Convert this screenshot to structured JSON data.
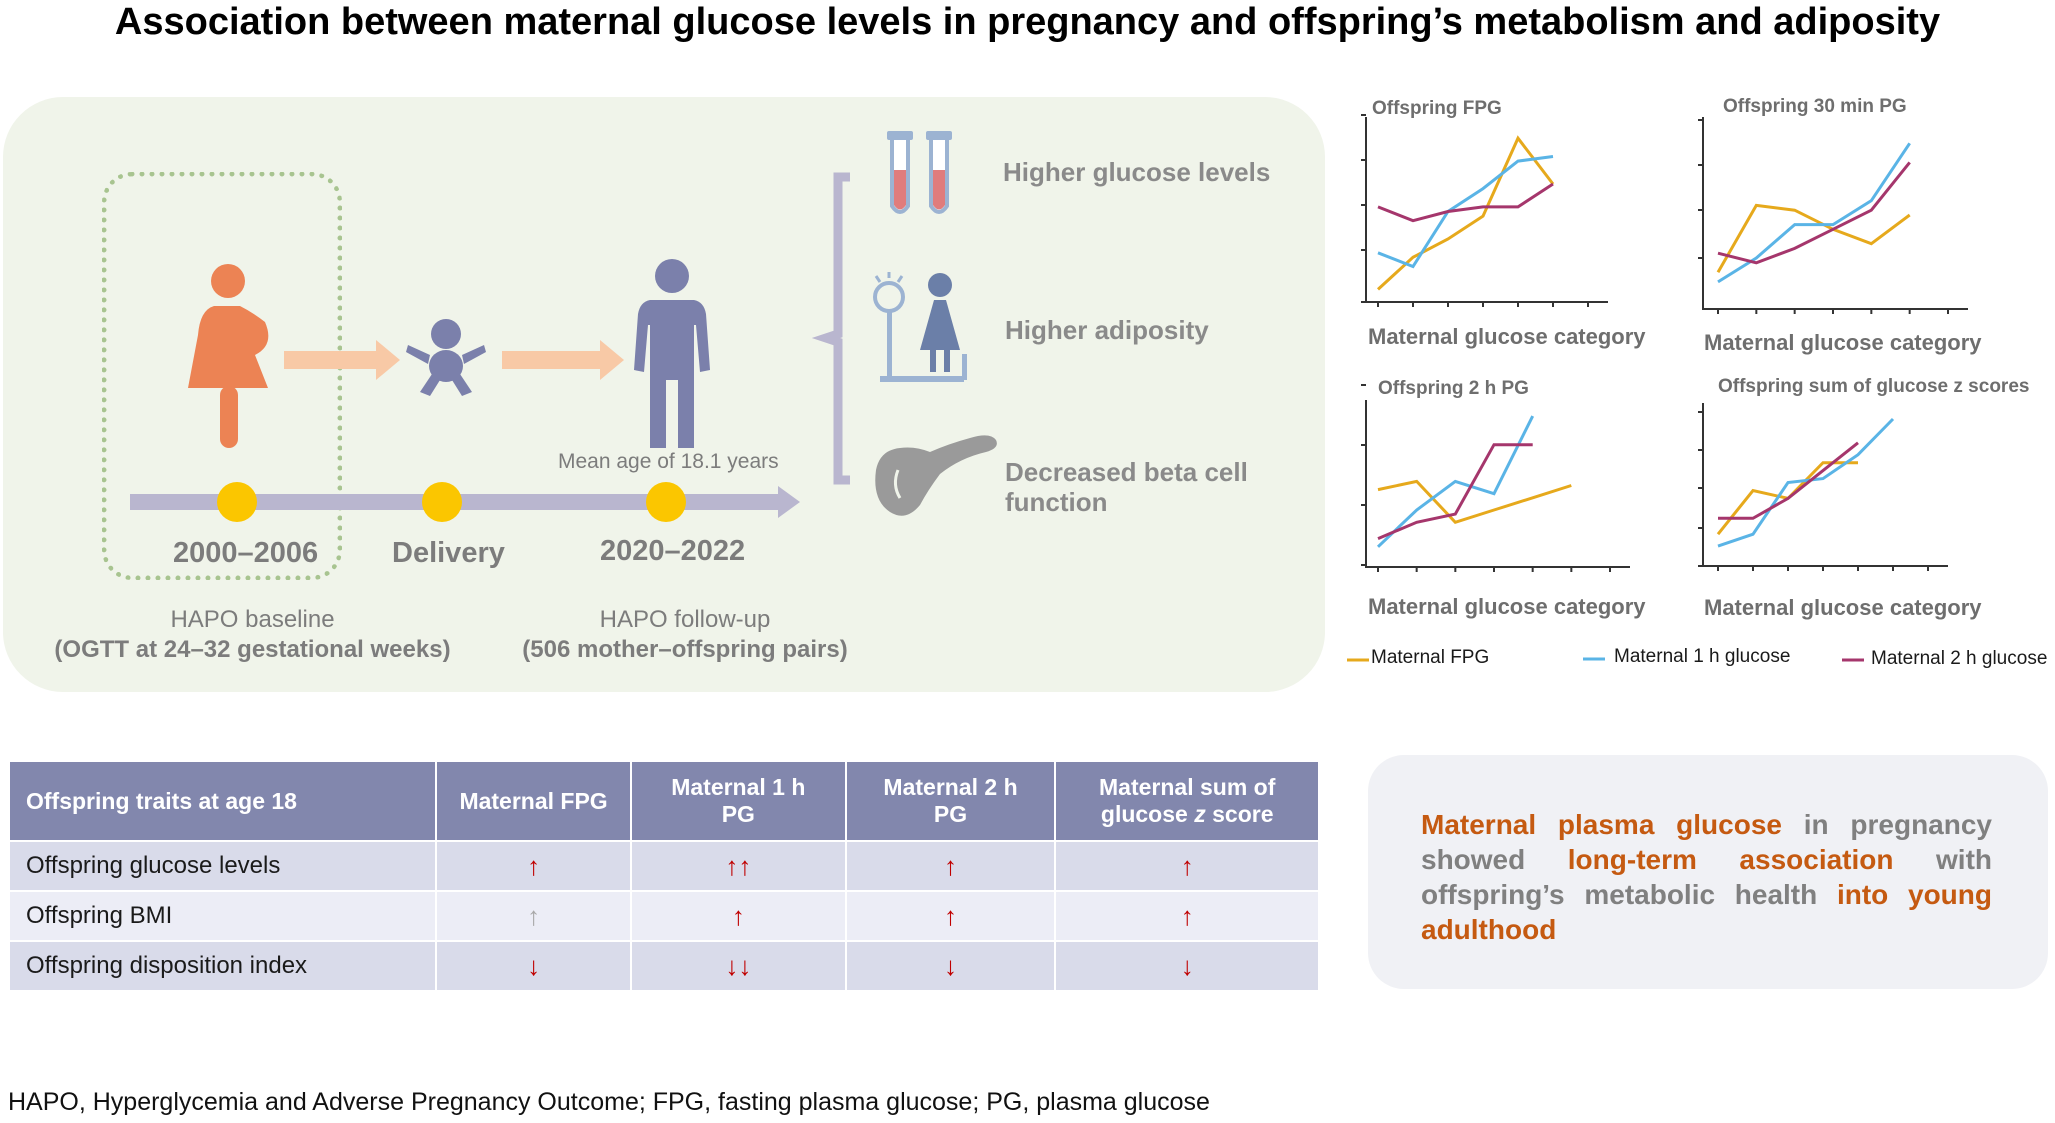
{
  "title": "Association between maternal glucose levels in pregnancy and offspring’s metabolism and adiposity",
  "timeline": {
    "events": [
      {
        "year": "2000–2006",
        "label": "HAPO baseline",
        "detail": "(OGTT at 24–32 gestational weeks)"
      },
      {
        "year": "Delivery"
      },
      {
        "year": "2020–2022",
        "label": "HAPO follow-up",
        "detail": "(506 mother–offspring pairs)",
        "note": "Mean age of 18.1 years"
      }
    ]
  },
  "outcomes": [
    "Higher glucose levels",
    "Higher adiposity",
    "Decreased beta cell function"
  ],
  "colors": {
    "maternal_fpg": "#e6a91c",
    "maternal_1h": "#5ab4e6",
    "maternal_2h": "#a5366c",
    "accent": "#c55a11",
    "table_header": "#8287ad",
    "arrow": "#c00000"
  },
  "chart_data": [
    {
      "type": "line",
      "title": "Offspring FPG",
      "xlabel": "Maternal glucose category",
      "ylabel": "",
      "x": [
        1,
        2,
        3,
        4,
        5,
        6,
        7
      ],
      "series": [
        {
          "name": "Maternal FPG",
          "values": [
            0.1,
            0.8,
            1.2,
            1.7,
            3.4,
            2.4,
            null
          ]
        },
        {
          "name": "Maternal 1 h glucose",
          "values": [
            0.9,
            0.6,
            1.8,
            2.3,
            2.9,
            3.0,
            null
          ]
        },
        {
          "name": "Maternal 2 h glucose",
          "values": [
            1.9,
            1.6,
            1.8,
            1.9,
            1.9,
            2.4,
            null
          ]
        }
      ]
    },
    {
      "type": "line",
      "title": "Offspring 30 min PG",
      "xlabel": "Maternal glucose category",
      "ylabel": "",
      "x": [
        1,
        2,
        3,
        4,
        5,
        6,
        7
      ],
      "series": [
        {
          "name": "Maternal FPG",
          "values": [
            0.6,
            2.0,
            1.9,
            1.5,
            1.2,
            1.8,
            null
          ]
        },
        {
          "name": "Maternal 1 h glucose",
          "values": [
            0.4,
            0.9,
            1.6,
            1.6,
            2.1,
            3.3,
            null
          ]
        },
        {
          "name": "Maternal 2 h glucose",
          "values": [
            1.0,
            0.8,
            1.1,
            1.5,
            1.9,
            2.9,
            null
          ]
        }
      ]
    },
    {
      "type": "line",
      "title": "Offspring 2 h PG",
      "xlabel": "Maternal glucose category",
      "ylabel": "",
      "x": [
        1,
        2,
        3,
        4,
        5,
        6,
        7
      ],
      "series": [
        {
          "name": "Maternal FPG",
          "values": [
            1.7,
            1.9,
            0.9,
            1.2,
            1.5,
            1.8,
            null
          ]
        },
        {
          "name": "Maternal 1 h glucose",
          "values": [
            0.3,
            1.2,
            1.9,
            1.6,
            3.5,
            null,
            null
          ]
        },
        {
          "name": "Maternal 2 h glucose",
          "values": [
            0.5,
            0.9,
            1.1,
            2.8,
            2.8,
            null,
            null
          ]
        }
      ]
    },
    {
      "type": "line",
      "title": "Offspring sum of glucose z scores",
      "xlabel": "Maternal glucose category",
      "ylabel": "",
      "x": [
        1,
        2,
        3,
        4,
        5,
        6,
        7
      ],
      "series": [
        {
          "name": "Maternal FPG",
          "values": [
            0.6,
            1.7,
            1.5,
            2.4,
            2.4,
            null,
            null
          ]
        },
        {
          "name": "Maternal 1 h glucose",
          "values": [
            0.3,
            0.6,
            1.9,
            2.0,
            2.6,
            3.5,
            null
          ]
        },
        {
          "name": "Maternal 2 h glucose",
          "values": [
            1.0,
            1.0,
            1.5,
            2.2,
            2.9,
            null,
            null
          ]
        }
      ]
    }
  ],
  "legend": [
    "Maternal FPG",
    "Maternal 1 h glucose",
    "Maternal 2 h glucose"
  ],
  "table": {
    "headers": [
      [
        "Offspring traits at age 18"
      ],
      [
        "Maternal FPG"
      ],
      [
        "Maternal 1 h",
        "PG"
      ],
      [
        "Maternal 2 h",
        "PG"
      ],
      [
        "Maternal  sum of",
        "glucose z score"
      ]
    ],
    "rows": [
      {
        "trait": "Offspring glucose levels",
        "cells": [
          {
            "v": "↑",
            "c": "red"
          },
          {
            "v": "↑↑",
            "c": "red"
          },
          {
            "v": "↑",
            "c": "red"
          },
          {
            "v": "↑",
            "c": "red"
          }
        ]
      },
      {
        "trait": "Offspring BMI",
        "cells": [
          {
            "v": "↑",
            "c": "grey"
          },
          {
            "v": "↑",
            "c": "red"
          },
          {
            "v": "↑",
            "c": "red"
          },
          {
            "v": "↑",
            "c": "red"
          }
        ]
      },
      {
        "trait": "Offspring disposition index",
        "cells": [
          {
            "v": "↓",
            "c": "red"
          },
          {
            "v": "↓↓",
            "c": "red"
          },
          {
            "v": "↓",
            "c": "red"
          },
          {
            "v": "↓",
            "c": "red"
          }
        ]
      }
    ]
  },
  "summary": {
    "p1": "Maternal plasma glucose",
    "p2": " in pregnancy showed ",
    "p3": "long-term association",
    "p4": " with offspring’s metabolic health ",
    "p5": "into young adulthood"
  },
  "footnote": "HAPO, Hyperglycemia and Adverse Pregnancy Outcome; FPG, fasting plasma glucose; PG, plasma glucose"
}
